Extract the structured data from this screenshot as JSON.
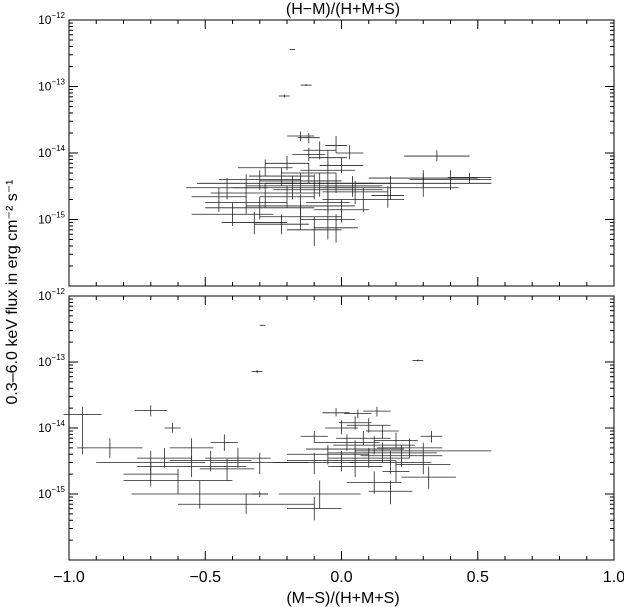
{
  "chart_data": {
    "type": "scatter",
    "ylabel": "0.3–6.0 keV flux in erg cm⁻² s⁻¹",
    "x_ticks": [
      "−1.0",
      "−0.5",
      "0.0",
      "0.5",
      "1.0"
    ],
    "y_ticks": [
      {
        "base": "10",
        "exp": "−15",
        "value": 1e-15
      },
      {
        "base": "10",
        "exp": "−14",
        "value": 1e-14
      },
      {
        "base": "10",
        "exp": "−13",
        "value": 1e-13
      },
      {
        "base": "10",
        "exp": "−12",
        "value": 1e-12
      }
    ],
    "panels": [
      {
        "title": "(H−M)/(H+M+S)",
        "xlabel": "",
        "xlim": [
          -1.0,
          1.0
        ],
        "ylim": [
          1e-16,
          1e-12
        ],
        "yscale": "log",
        "show_x_tick_labels": false,
        "points": [
          {
            "x": -0.18,
            "y": 3.6e-13,
            "xerr": 0.01,
            "ylo": 3.55e-13,
            "yhi": 3.65e-13
          },
          {
            "x": -0.13,
            "y": 1.05e-13,
            "xerr": 0.02,
            "ylo": 1.02e-13,
            "yhi": 1.09e-13
          },
          {
            "x": -0.21,
            "y": 7.2e-14,
            "xerr": 0.02,
            "ylo": 6.8e-14,
            "yhi": 7.6e-14
          },
          {
            "x": -0.15,
            "y": 1.8e-14,
            "xerr": 0.05,
            "ylo": 1.5e-14,
            "yhi": 2.1e-14
          },
          {
            "x": -0.12,
            "y": 1.7e-14,
            "xerr": 0.04,
            "ylo": 1.4e-14,
            "yhi": 2e-14
          },
          {
            "x": -0.02,
            "y": 1.3e-14,
            "xerr": 0.04,
            "ylo": 1e-14,
            "yhi": 1.8e-14
          },
          {
            "x": -0.08,
            "y": 1.1e-14,
            "xerr": 0.06,
            "ylo": 8e-15,
            "yhi": 1.5e-14
          },
          {
            "x": 0.03,
            "y": 1e-14,
            "xerr": 0.05,
            "ylo": 8e-15,
            "yhi": 1.3e-14
          },
          {
            "x": -0.12,
            "y": 9.5e-15,
            "xerr": 0.06,
            "ylo": 7.5e-15,
            "yhi": 1.2e-14
          },
          {
            "x": -0.05,
            "y": 8.5e-15,
            "xerr": 0.07,
            "ylo": 6.5e-15,
            "yhi": 1.1e-14
          },
          {
            "x": 0.35,
            "y": 9e-15,
            "xerr": 0.12,
            "ylo": 7.5e-15,
            "yhi": 1.1e-14
          },
          {
            "x": -0.2,
            "y": 7e-15,
            "xerr": 0.08,
            "ylo": 5.5e-15,
            "yhi": 9e-15
          },
          {
            "x": -0.28,
            "y": 6e-15,
            "xerr": 0.1,
            "ylo": 4.5e-15,
            "yhi": 8e-15
          },
          {
            "x": 0.0,
            "y": 6.5e-15,
            "xerr": 0.08,
            "ylo": 5e-15,
            "yhi": 8.5e-15
          },
          {
            "x": -0.05,
            "y": 5.5e-15,
            "xerr": 0.1,
            "ylo": 4e-15,
            "yhi": 7.5e-15
          },
          {
            "x": -0.12,
            "y": 5e-15,
            "xerr": 0.1,
            "ylo": 3.5e-15,
            "yhi": 7e-15
          },
          {
            "x": -0.22,
            "y": 4.5e-15,
            "xerr": 0.12,
            "ylo": 3.2e-15,
            "yhi": 6e-15
          },
          {
            "x": 0.3,
            "y": 4.2e-15,
            "xerr": 0.2,
            "ylo": 3e-15,
            "yhi": 5.5e-15
          },
          {
            "x": 0.4,
            "y": 4e-15,
            "xerr": 0.15,
            "ylo": 2.8e-15,
            "yhi": 5.5e-15
          },
          {
            "x": 0.47,
            "y": 4.3e-15,
            "xerr": 0.08,
            "ylo": 3.5e-15,
            "yhi": 5e-15
          },
          {
            "x": -0.3,
            "y": 4e-15,
            "xerr": 0.15,
            "ylo": 2.8e-15,
            "yhi": 5.5e-15
          },
          {
            "x": -0.15,
            "y": 3.8e-15,
            "xerr": 0.15,
            "ylo": 2.5e-15,
            "yhi": 5e-15
          },
          {
            "x": -0.08,
            "y": 3.5e-15,
            "xerr": 0.2,
            "ylo": 2.2e-15,
            "yhi": 5e-15
          },
          {
            "x": -0.35,
            "y": 3.5e-15,
            "xerr": 0.18,
            "ylo": 2.5e-15,
            "yhi": 4.8e-15
          },
          {
            "x": -0.02,
            "y": 3.5e-15,
            "xerr": 0.2,
            "ylo": 2.5e-15,
            "yhi": 5e-15
          },
          {
            "x": 0.04,
            "y": 3.2e-15,
            "xerr": 0.1,
            "ylo": 2.2e-15,
            "yhi": 4.5e-15
          },
          {
            "x": -0.42,
            "y": 3e-15,
            "xerr": 0.15,
            "ylo": 2e-15,
            "yhi": 4.2e-15
          },
          {
            "x": 0.18,
            "y": 3e-15,
            "xerr": 0.25,
            "ylo": 2e-15,
            "yhi": 4.5e-15
          },
          {
            "x": 0.3,
            "y": 3.5e-15,
            "xerr": 0.25,
            "ylo": 2.2e-15,
            "yhi": 5e-15
          },
          {
            "x": -0.18,
            "y": 3e-15,
            "xerr": 0.22,
            "ylo": 2e-15,
            "yhi": 4.5e-15
          },
          {
            "x": -0.1,
            "y": 3.2e-15,
            "xerr": 0.25,
            "ylo": 2e-15,
            "yhi": 4.8e-15
          },
          {
            "x": -0.05,
            "y": 2.8e-15,
            "xerr": 0.2,
            "ylo": 1.8e-15,
            "yhi": 4e-15
          },
          {
            "x": 0.05,
            "y": 2.6e-15,
            "xerr": 0.12,
            "ylo": 1.7e-15,
            "yhi": 3.8e-15
          },
          {
            "x": -0.28,
            "y": 2.5e-15,
            "xerr": 0.2,
            "ylo": 1.5e-15,
            "yhi": 3.5e-15
          },
          {
            "x": 0.17,
            "y": 2.3e-15,
            "xerr": 0.06,
            "ylo": 1.5e-15,
            "yhi": 3.2e-15
          },
          {
            "x": -0.45,
            "y": 2.2e-15,
            "xerr": 0.1,
            "ylo": 1.3e-15,
            "yhi": 3e-15
          },
          {
            "x": -0.2,
            "y": 2.2e-15,
            "xerr": 0.1,
            "ylo": 1.5e-15,
            "yhi": 3.2e-15
          },
          {
            "x": 0.08,
            "y": 2e-15,
            "xerr": 0.15,
            "ylo": 1.3e-15,
            "yhi": 3e-15
          },
          {
            "x": -0.35,
            "y": 1.8e-15,
            "xerr": 0.15,
            "ylo": 1.2e-15,
            "yhi": 2.6e-15
          },
          {
            "x": -0.05,
            "y": 1.8e-15,
            "xerr": 0.08,
            "ylo": 1.2e-15,
            "yhi": 2.6e-15
          },
          {
            "x": -0.15,
            "y": 1.6e-15,
            "xerr": 0.2,
            "ylo": 1e-15,
            "yhi": 2.4e-15
          },
          {
            "x": -0.3,
            "y": 1.5e-15,
            "xerr": 0.2,
            "ylo": 1e-15,
            "yhi": 2.2e-15
          },
          {
            "x": 0.0,
            "y": 1.4e-15,
            "xerr": 0.1,
            "ylo": 9e-16,
            "yhi": 2e-15
          },
          {
            "x": -0.4,
            "y": 1.2e-15,
            "xerr": 0.15,
            "ylo": 8e-16,
            "yhi": 1.8e-15
          },
          {
            "x": -0.15,
            "y": 1.1e-15,
            "xerr": 0.15,
            "ylo": 7e-16,
            "yhi": 1.6e-15
          },
          {
            "x": -0.05,
            "y": 1e-15,
            "xerr": 0.1,
            "ylo": 5e-16,
            "yhi": 1.6e-15
          },
          {
            "x": -0.22,
            "y": 8.5e-16,
            "xerr": 0.1,
            "ylo": 6e-16,
            "yhi": 1.2e-15
          },
          {
            "x": -0.1,
            "y": 7e-16,
            "xerr": 0.1,
            "ylo": 4e-16,
            "yhi": 1.1e-15
          },
          {
            "x": -0.02,
            "y": 7.5e-16,
            "xerr": 0.08,
            "ylo": 4.5e-16,
            "yhi": 1.2e-15
          },
          {
            "x": -0.32,
            "y": 9e-16,
            "xerr": 0.12,
            "ylo": 6e-16,
            "yhi": 1.3e-15
          }
        ]
      },
      {
        "title": "",
        "xlabel": "(M−S)/(H+M+S)",
        "xlim": [
          -1.0,
          1.0
        ],
        "ylim": [
          1e-16,
          1e-12
        ],
        "yscale": "log",
        "show_x_tick_labels": true,
        "points": [
          {
            "x": -0.29,
            "y": 3.6e-13,
            "xerr": 0.01,
            "ylo": 3.55e-13,
            "yhi": 3.65e-13
          },
          {
            "x": 0.28,
            "y": 1.05e-13,
            "xerr": 0.02,
            "ylo": 1.02e-13,
            "yhi": 1.09e-13
          },
          {
            "x": -0.31,
            "y": 7.2e-14,
            "xerr": 0.02,
            "ylo": 6.8e-14,
            "yhi": 7.6e-14
          },
          {
            "x": -0.95,
            "y": 1.6e-14,
            "xerr": 0.07,
            "ylo": 4e-15,
            "yhi": 2.1e-14
          },
          {
            "x": -0.7,
            "y": 1.85e-14,
            "xerr": 0.06,
            "ylo": 1.5e-14,
            "yhi": 2.2e-14
          },
          {
            "x": -0.62,
            "y": 1e-14,
            "xerr": 0.03,
            "ylo": 8.5e-15,
            "yhi": 1.2e-14
          },
          {
            "x": -0.43,
            "y": 6e-15,
            "xerr": 0.05,
            "ylo": 4.5e-15,
            "yhi": 8e-15
          },
          {
            "x": -0.85,
            "y": 5e-15,
            "xerr": 0.12,
            "ylo": 3.5e-15,
            "yhi": 7e-15
          },
          {
            "x": -0.55,
            "y": 5e-15,
            "xerr": 0.08,
            "ylo": 3.5e-15,
            "yhi": 7e-15
          },
          {
            "x": -0.65,
            "y": 3.5e-15,
            "xerr": 0.1,
            "ylo": 2.5e-15,
            "yhi": 5e-15
          },
          {
            "x": -0.38,
            "y": 3.5e-15,
            "xerr": 0.12,
            "ylo": 2.5e-15,
            "yhi": 5e-15
          },
          {
            "x": -0.7,
            "y": 3e-15,
            "xerr": 0.2,
            "ylo": 2e-15,
            "yhi": 4.5e-15
          },
          {
            "x": -0.48,
            "y": 3.2e-15,
            "xerr": 0.15,
            "ylo": 2.2e-15,
            "yhi": 4.5e-15
          },
          {
            "x": -0.3,
            "y": 3e-15,
            "xerr": 0.18,
            "ylo": 2e-15,
            "yhi": 4.2e-15
          },
          {
            "x": -0.55,
            "y": 2.6e-15,
            "xerr": 0.2,
            "ylo": 1.8e-15,
            "yhi": 3.8e-15
          },
          {
            "x": -0.42,
            "y": 2.4e-15,
            "xerr": 0.1,
            "ylo": 1.6e-15,
            "yhi": 3.4e-15
          },
          {
            "x": -0.7,
            "y": 2e-15,
            "xerr": 0.1,
            "ylo": 1.3e-15,
            "yhi": 3e-15
          },
          {
            "x": -0.6,
            "y": 1.6e-15,
            "xerr": 0.2,
            "ylo": 1e-15,
            "yhi": 2.4e-15
          },
          {
            "x": -0.52,
            "y": 1e-15,
            "xerr": 0.25,
            "ylo": 6e-16,
            "yhi": 1.6e-15
          },
          {
            "x": -0.3,
            "y": 1e-15,
            "xerr": 0.03,
            "ylo": 9e-16,
            "yhi": 1.1e-15
          },
          {
            "x": -0.1,
            "y": 6e-16,
            "xerr": 0.1,
            "ylo": 4e-16,
            "yhi": 9e-16
          },
          {
            "x": -0.35,
            "y": 7e-16,
            "xerr": 0.25,
            "ylo": 5e-16,
            "yhi": 1e-15
          },
          {
            "x": -0.02,
            "y": 1.7e-14,
            "xerr": 0.05,
            "ylo": 1.5e-14,
            "yhi": 2e-14
          },
          {
            "x": 0.06,
            "y": 1.65e-14,
            "xerr": 0.05,
            "ylo": 1.4e-14,
            "yhi": 1.9e-14
          },
          {
            "x": 0.13,
            "y": 1.8e-14,
            "xerr": 0.05,
            "ylo": 1.5e-14,
            "yhi": 2.1e-14
          },
          {
            "x": 0.05,
            "y": 1.2e-14,
            "xerr": 0.06,
            "ylo": 9.5e-15,
            "yhi": 1.5e-14
          },
          {
            "x": 0.1,
            "y": 1.1e-14,
            "xerr": 0.08,
            "ylo": 8.5e-15,
            "yhi": 1.4e-14
          },
          {
            "x": 0.0,
            "y": 1e-14,
            "xerr": 0.06,
            "ylo": 8e-15,
            "yhi": 1.3e-14
          },
          {
            "x": 0.15,
            "y": 9e-15,
            "xerr": 0.06,
            "ylo": 7e-15,
            "yhi": 1.1e-14
          },
          {
            "x": 0.33,
            "y": 7.5e-15,
            "xerr": 0.04,
            "ylo": 6e-15,
            "yhi": 9e-15
          },
          {
            "x": -0.1,
            "y": 7.5e-15,
            "xerr": 0.05,
            "ylo": 6e-15,
            "yhi": 9e-15
          },
          {
            "x": 0.08,
            "y": 7e-15,
            "xerr": 0.1,
            "ylo": 5.5e-15,
            "yhi": 9e-15
          },
          {
            "x": 0.2,
            "y": 6.5e-15,
            "xerr": 0.08,
            "ylo": 5e-15,
            "yhi": 8.5e-15
          },
          {
            "x": 0.02,
            "y": 6e-15,
            "xerr": 0.12,
            "ylo": 4.5e-15,
            "yhi": 8e-15
          },
          {
            "x": 0.12,
            "y": 5.5e-15,
            "xerr": 0.15,
            "ylo": 4e-15,
            "yhi": 7.5e-15
          },
          {
            "x": 0.25,
            "y": 5e-15,
            "xerr": 0.12,
            "ylo": 3.5e-15,
            "yhi": 7e-15
          },
          {
            "x": 0.05,
            "y": 4.8e-15,
            "xerr": 0.18,
            "ylo": 3.5e-15,
            "yhi": 6.5e-15
          },
          {
            "x": 0.3,
            "y": 4.5e-15,
            "xerr": 0.25,
            "ylo": 3.2e-15,
            "yhi": 6e-15
          },
          {
            "x": 0.15,
            "y": 4.2e-15,
            "xerr": 0.2,
            "ylo": 3e-15,
            "yhi": 6e-15
          },
          {
            "x": -0.05,
            "y": 4e-15,
            "xerr": 0.15,
            "ylo": 2.8e-15,
            "yhi": 5.5e-15
          },
          {
            "x": 0.22,
            "y": 3.8e-15,
            "xerr": 0.15,
            "ylo": 2.6e-15,
            "yhi": 5.5e-15
          },
          {
            "x": 0.1,
            "y": 3.5e-15,
            "xerr": 0.15,
            "ylo": 2.5e-15,
            "yhi": 5e-15
          },
          {
            "x": 0.0,
            "y": 3.2e-15,
            "xerr": 0.2,
            "ylo": 2.2e-15,
            "yhi": 4.5e-15
          },
          {
            "x": 0.18,
            "y": 3e-15,
            "xerr": 0.15,
            "ylo": 2e-15,
            "yhi": 4.5e-15
          },
          {
            "x": 0.3,
            "y": 2.8e-15,
            "xerr": 0.1,
            "ylo": 2e-15,
            "yhi": 4e-15
          },
          {
            "x": -0.1,
            "y": 3e-15,
            "xerr": 0.15,
            "ylo": 2e-15,
            "yhi": 4.2e-15
          },
          {
            "x": 0.05,
            "y": 2.6e-15,
            "xerr": 0.1,
            "ylo": 1.8e-15,
            "yhi": 3.6e-15
          },
          {
            "x": 0.2,
            "y": 2.2e-15,
            "xerr": 0.05,
            "ylo": 1.5e-15,
            "yhi": 3.2e-15
          },
          {
            "x": 0.32,
            "y": 1.8e-15,
            "xerr": 0.1,
            "ylo": 1.2e-15,
            "yhi": 2.6e-15
          },
          {
            "x": 0.12,
            "y": 1.5e-15,
            "xerr": 0.1,
            "ylo": 1e-15,
            "yhi": 2.2e-15
          },
          {
            "x": -0.08,
            "y": 1e-15,
            "xerr": 0.15,
            "ylo": 6e-16,
            "yhi": 1.6e-15
          },
          {
            "x": 0.18,
            "y": 1.1e-15,
            "xerr": 0.08,
            "ylo": 7e-16,
            "yhi": 1.6e-15
          }
        ]
      }
    ]
  }
}
